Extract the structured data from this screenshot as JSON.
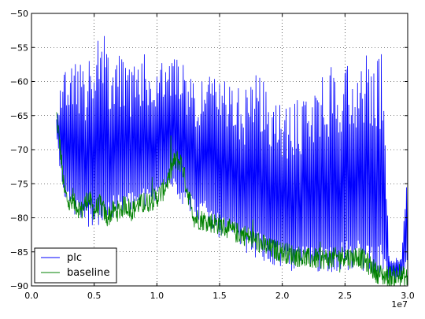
{
  "chart_data": {
    "type": "line",
    "title": "",
    "xlabel": "",
    "ylabel": "",
    "x_offset_label": "1e7",
    "xlim": [
      0,
      30000000
    ],
    "ylim": [
      -90,
      -50
    ],
    "x_ticks": [
      0,
      5000000,
      10000000,
      15000000,
      20000000,
      25000000,
      30000000
    ],
    "x_tick_labels": [
      "0.0",
      "0.5",
      "1.0",
      "1.5",
      "2.0",
      "2.5",
      "3.0"
    ],
    "y_ticks": [
      -90,
      -85,
      -80,
      -75,
      -70,
      -65,
      -60,
      -55,
      -50
    ],
    "y_tick_labels": [
      "−90",
      "−85",
      "−80",
      "−75",
      "−70",
      "−65",
      "−60",
      "−55",
      "−50"
    ],
    "grid": true,
    "legend_position": "lower-left",
    "series": [
      {
        "name": "plc",
        "color": "#0000ff",
        "description_points_x": [
          2000000,
          2500000,
          3000000,
          3500000,
          4000000,
          5000000,
          5600000,
          6000000,
          7000000,
          8000000,
          9000000,
          10000000,
          11000000,
          12000000,
          13000000,
          14000000,
          15000000,
          16000000,
          17000000,
          18000000,
          19000000,
          20000000,
          21000000,
          22000000,
          23000000,
          24000000,
          25000000,
          26000000,
          27000000,
          28000000,
          28500000,
          29000000,
          29500000,
          30000000
        ],
        "upper_envelope": [
          -65,
          -58,
          -57,
          -55,
          -58,
          -56,
          -50,
          -55,
          -56,
          -58,
          -56,
          -58,
          -56,
          -56,
          -60,
          -58,
          -60,
          -60,
          -61,
          -58,
          -62,
          -63,
          -63,
          -61,
          -59,
          -57,
          -57,
          -56,
          -55,
          -56,
          -85,
          -86,
          -85,
          -72
        ],
        "lower_envelope": [
          -68,
          -77,
          -79,
          -80,
          -82,
          -81,
          -82,
          -81,
          -80,
          -79,
          -79,
          -78,
          -75,
          -78,
          -80,
          -81,
          -83,
          -84,
          -85,
          -86,
          -87,
          -88,
          -88,
          -88,
          -88,
          -88,
          -88,
          -88,
          -88,
          -89,
          -89,
          -89,
          -89,
          -88
        ]
      },
      {
        "name": "baseline",
        "color": "#008000",
        "x": [
          2000000,
          2300000,
          2600000,
          3000000,
          3500000,
          4000000,
          4500000,
          5000000,
          5500000,
          6000000,
          6500000,
          7000000,
          7500000,
          8000000,
          8500000,
          9000000,
          9500000,
          10000000,
          10500000,
          11000000,
          11300000,
          11600000,
          12000000,
          12300000,
          12700000,
          13000000,
          14000000,
          15000000,
          16000000,
          17000000,
          18000000,
          19000000,
          20000000,
          21000000,
          22000000,
          23000000,
          24000000,
          25000000,
          25500000,
          26000000,
          27000000,
          27500000,
          28000000,
          28500000,
          29000000,
          29500000,
          30000000
        ],
        "y": [
          -65,
          -70,
          -76,
          -78,
          -78,
          -79,
          -77,
          -79,
          -78,
          -80,
          -79,
          -79,
          -78,
          -79,
          -78,
          -78,
          -77.5,
          -77,
          -76,
          -74,
          -72,
          -71.5,
          -72,
          -75,
          -78,
          -80,
          -80.5,
          -81,
          -82,
          -82.5,
          -83.5,
          -84.5,
          -85,
          -85.5,
          -86,
          -86,
          -86,
          -85.5,
          -86,
          -85.5,
          -87,
          -88,
          -88.5,
          -88.5,
          -88.5,
          -88.5,
          -89
        ]
      }
    ]
  }
}
